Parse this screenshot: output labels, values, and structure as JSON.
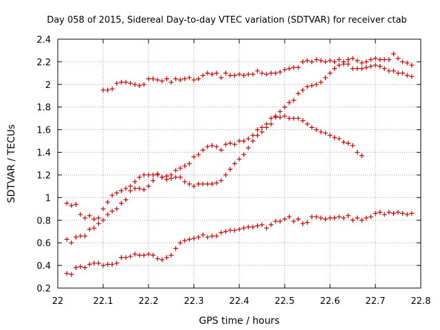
{
  "chart_data": {
    "type": "scatter",
    "title": "Day 058 of 2015, Sidereal Day-to-day VTEC variation (SDTVAR) for receiver ctab",
    "xlabel": "GPS time / hours",
    "ylabel": "SDTVAR / TECUs",
    "xlim": [
      22,
      22.8
    ],
    "ylim": [
      0.2,
      2.4
    ],
    "xticks": [
      "22",
      "22.1",
      "22.2",
      "22.3",
      "22.4",
      "22.5",
      "22.6",
      "22.7",
      "22.8"
    ],
    "yticks": [
      "0.2",
      "0.4",
      "0.6",
      "0.8",
      "1",
      "1.2",
      "1.4",
      "1.6",
      "1.8",
      "2",
      "2.2",
      "2.4"
    ],
    "grid": true,
    "marker": "+",
    "marker_color": "#cc0000",
    "series": [
      {
        "name": "series-1",
        "x": [
          22.1,
          22.11,
          22.12,
          22.13,
          22.14,
          22.15,
          22.16,
          22.17,
          22.18,
          22.19,
          22.2,
          22.21,
          22.22,
          22.23,
          22.24,
          22.25,
          22.26,
          22.27,
          22.28,
          22.29,
          22.3,
          22.31,
          22.32,
          22.33,
          22.34,
          22.35,
          22.36,
          22.37,
          22.38,
          22.39,
          22.4,
          22.41,
          22.42,
          22.43,
          22.44,
          22.45,
          22.46,
          22.47,
          22.48,
          22.49,
          22.5,
          22.51,
          22.52,
          22.53,
          22.54,
          22.55,
          22.56,
          22.57,
          22.58,
          22.59,
          22.6,
          22.61,
          22.62,
          22.63,
          22.64,
          22.65,
          22.66,
          22.67,
          22.68,
          22.69,
          22.7,
          22.71,
          22.72,
          22.73,
          22.74,
          22.75,
          22.76,
          22.77,
          22.78
        ],
        "y": [
          1.95,
          1.95,
          1.96,
          2.01,
          2.02,
          2.02,
          2.01,
          2.0,
          1.99,
          2.0,
          2.05,
          2.05,
          2.04,
          2.03,
          2.05,
          2.02,
          2.05,
          2.04,
          2.05,
          2.06,
          2.04,
          2.05,
          2.08,
          2.1,
          2.09,
          2.1,
          2.06,
          2.1,
          2.08,
          2.08,
          2.09,
          2.08,
          2.09,
          2.09,
          2.12,
          2.1,
          2.09,
          2.1,
          2.1,
          2.11,
          2.13,
          2.14,
          2.15,
          2.15,
          2.2,
          2.21,
          2.2,
          2.22,
          2.21,
          2.2,
          2.21,
          2.2,
          2.22,
          2.2,
          2.22,
          2.23,
          2.21,
          2.19,
          2.2,
          2.22,
          2.23,
          2.22,
          2.22,
          2.22,
          2.27,
          2.23,
          2.2,
          2.19,
          2.17
        ]
      },
      {
        "name": "series-2",
        "x": [
          22.02,
          22.03,
          22.04,
          22.05,
          22.06,
          22.07,
          22.08,
          22.09,
          22.1,
          22.11,
          22.12,
          22.13,
          22.14,
          22.15,
          22.16,
          22.17,
          22.18,
          22.19,
          22.2,
          22.21,
          22.22,
          22.23,
          22.24,
          22.25,
          22.26,
          22.27,
          22.28,
          22.29,
          22.3,
          22.31,
          22.32,
          22.33,
          22.34,
          22.35,
          22.36,
          22.37,
          22.38,
          22.39,
          22.4,
          22.41,
          22.42,
          22.43,
          22.44,
          22.45,
          22.46,
          22.47,
          22.48,
          22.49,
          22.5,
          22.51,
          22.52,
          22.53,
          22.54,
          22.55,
          22.56,
          22.57,
          22.58,
          22.59,
          22.6,
          22.61,
          22.62,
          22.63,
          22.64,
          22.65,
          22.66,
          22.67,
          22.68,
          22.69,
          22.7,
          22.71,
          22.72,
          22.73,
          22.74,
          22.75,
          22.76,
          22.77,
          22.78
        ],
        "y": [
          0.33,
          0.32,
          0.38,
          0.39,
          0.38,
          0.41,
          0.42,
          0.42,
          0.4,
          0.41,
          0.41,
          0.42,
          0.47,
          0.47,
          0.48,
          0.5,
          0.49,
          0.49,
          0.5,
          0.49,
          0.46,
          0.45,
          0.47,
          0.49,
          0.55,
          0.6,
          0.62,
          0.63,
          0.64,
          0.65,
          0.67,
          0.65,
          0.66,
          0.66,
          0.69,
          0.7,
          0.71,
          0.71,
          0.72,
          0.73,
          0.74,
          0.74,
          0.75,
          0.76,
          0.73,
          0.76,
          0.79,
          0.79,
          0.81,
          0.83,
          0.79,
          0.81,
          0.77,
          0.78,
          0.83,
          0.83,
          0.82,
          0.81,
          0.82,
          0.82,
          0.83,
          0.82,
          0.84,
          0.8,
          0.82,
          0.8,
          0.82,
          0.83,
          0.86,
          0.87,
          0.85,
          0.87,
          0.86,
          0.87,
          0.86,
          0.85,
          0.86
        ]
      },
      {
        "name": "series-3",
        "x": [
          22.02,
          22.03,
          22.04,
          22.05,
          22.06,
          22.07,
          22.08,
          22.09,
          22.1,
          22.11,
          22.12,
          22.13,
          22.14,
          22.15,
          22.16,
          22.17,
          22.18,
          22.19,
          22.2,
          22.21,
          22.22,
          22.23,
          22.24,
          22.25,
          22.26,
          22.27,
          22.28,
          22.29,
          22.3,
          22.31,
          22.32,
          22.33,
          22.34,
          22.35,
          22.36,
          22.37,
          22.38,
          22.39,
          22.4,
          22.41,
          22.42,
          22.43,
          22.44,
          22.45,
          22.46,
          22.47,
          22.48,
          22.49,
          22.5,
          22.51,
          22.52,
          22.53,
          22.54,
          22.55,
          22.56,
          22.57,
          22.58,
          22.59,
          22.6,
          22.61,
          22.62,
          22.63,
          22.64,
          22.65,
          22.66,
          22.67
        ],
        "y": [
          0.95,
          0.93,
          0.94,
          0.85,
          0.82,
          0.84,
          0.81,
          0.82,
          0.9,
          0.96,
          1.02,
          1.04,
          1.06,
          1.08,
          1.1,
          1.14,
          1.18,
          1.2,
          1.2,
          1.2,
          1.21,
          1.18,
          1.19,
          1.2,
          1.24,
          1.26,
          1.28,
          1.3,
          1.36,
          1.38,
          1.42,
          1.45,
          1.46,
          1.45,
          1.42,
          1.47,
          1.48,
          1.47,
          1.5,
          1.5,
          1.52,
          1.55,
          1.6,
          1.62,
          1.65,
          1.7,
          1.71,
          1.71,
          1.72,
          1.7,
          1.7,
          1.7,
          1.68,
          1.65,
          1.62,
          1.6,
          1.58,
          1.57,
          1.55,
          1.53,
          1.52,
          1.49,
          1.48,
          1.46,
          1.4,
          1.37
        ]
      },
      {
        "name": "series-4",
        "x": [
          22.02,
          22.03,
          22.04,
          22.05,
          22.06,
          22.07,
          22.08,
          22.09,
          22.1,
          22.11,
          22.12,
          22.13,
          22.14,
          22.15,
          22.16,
          22.17,
          22.18,
          22.19,
          22.2,
          22.21,
          22.22,
          22.23,
          22.24,
          22.25,
          22.26,
          22.27,
          22.28,
          22.29,
          22.3,
          22.31,
          22.32,
          22.33,
          22.34,
          22.35,
          22.36,
          22.37,
          22.38,
          22.39,
          22.4,
          22.41,
          22.42,
          22.43,
          22.44,
          22.45,
          22.46,
          22.47,
          22.48,
          22.49,
          22.5,
          22.51,
          22.52,
          22.53,
          22.54,
          22.55,
          22.56,
          22.57,
          22.58,
          22.59,
          22.6,
          22.61,
          22.62,
          22.63,
          22.64,
          22.65,
          22.66,
          22.67,
          22.68,
          22.69,
          22.7,
          22.71,
          22.72,
          22.73,
          22.74,
          22.75,
          22.76,
          22.77,
          22.78
        ],
        "y": [
          0.63,
          0.6,
          0.65,
          0.66,
          0.66,
          0.72,
          0.73,
          0.77,
          0.8,
          0.85,
          0.88,
          0.9,
          0.95,
          0.98,
          1.06,
          1.08,
          1.08,
          1.07,
          1.1,
          1.15,
          1.2,
          1.18,
          1.16,
          1.17,
          1.18,
          1.18,
          1.14,
          1.12,
          1.1,
          1.12,
          1.12,
          1.12,
          1.12,
          1.13,
          1.15,
          1.2,
          1.25,
          1.3,
          1.34,
          1.38,
          1.44,
          1.5,
          1.55,
          1.58,
          1.62,
          1.65,
          1.72,
          1.76,
          1.8,
          1.84,
          1.86,
          1.92,
          1.95,
          1.98,
          1.99,
          2.0,
          2.02,
          2.06,
          2.1,
          2.14,
          2.17,
          2.18,
          2.18,
          2.14,
          2.14,
          2.14,
          2.15,
          2.16,
          2.17,
          2.16,
          2.14,
          2.12,
          2.12,
          2.1,
          2.1,
          2.08,
          2.07
        ]
      }
    ]
  }
}
